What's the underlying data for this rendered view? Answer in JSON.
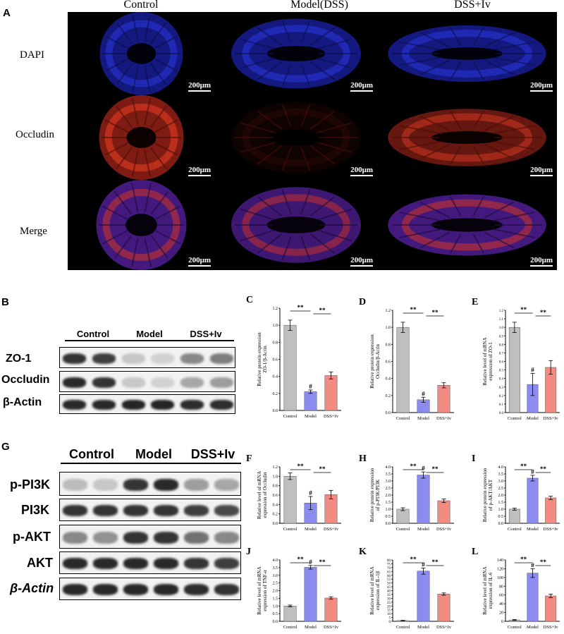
{
  "panelA": {
    "letter": "A",
    "columns": [
      "Control",
      "Model(DSS)",
      "DSS+Iv"
    ],
    "rows": [
      "DAPI",
      "Occludin",
      "Merge"
    ],
    "scale_bar": "200μm"
  },
  "panelB": {
    "letter": "B",
    "groups": [
      "Control",
      "Model",
      "DSS+Iv"
    ],
    "rows": [
      "ZO-1",
      "Occludin",
      "β-Actin"
    ]
  },
  "panelG": {
    "letter": "G",
    "groups": [
      "Control",
      "Model",
      "DSS+Iv"
    ],
    "rows": [
      "p-PI3K",
      "PI3K",
      "p-AKT",
      "AKT",
      "β-Actin"
    ]
  },
  "colors": {
    "control": "#bfbfbf",
    "model": "#8c8cf0",
    "dss": "#f28b82"
  },
  "chart_data": [
    {
      "letter": "C",
      "type": "bar",
      "categories": [
        "Control",
        "Model",
        "DSS+Iv"
      ],
      "values": [
        1.0,
        0.22,
        0.41
      ],
      "errors": [
        0.06,
        0.02,
        0.04
      ],
      "ylabel": [
        "Relative protein expression",
        "ZO-1/β-Actin"
      ],
      "ylim": [
        0,
        1.2
      ],
      "ticks": [
        "0.0",
        "0.2",
        "0.4",
        "0.6",
        "0.8",
        "1.0",
        "1.2"
      ],
      "sig": [
        "**",
        "**"
      ],
      "model_mark": "#"
    },
    {
      "letter": "D",
      "type": "bar",
      "categories": [
        "Control",
        "Model",
        "DSS+Iv"
      ],
      "values": [
        1.0,
        0.15,
        0.32
      ],
      "errors": [
        0.06,
        0.03,
        0.03
      ],
      "ylabel": [
        "Relative protein expression",
        "Occludin/β-Actin"
      ],
      "ylim": [
        0,
        1.2
      ],
      "ticks": [
        "0.0",
        "0.2",
        "0.4",
        "0.6",
        "0.8",
        "1.0",
        "1.2"
      ],
      "sig": [
        "**",
        "**"
      ],
      "model_mark": "#"
    },
    {
      "letter": "E",
      "type": "bar",
      "categories": [
        "Control",
        "Model",
        "DSS+Iv"
      ],
      "values": [
        1.0,
        0.33,
        0.53
      ],
      "errors": [
        0.06,
        0.13,
        0.08
      ],
      "ylabel": [
        "Relative level of mRNA",
        "expression of ZO-1"
      ],
      "ylim": [
        0,
        1.2
      ],
      "ticks": [
        "0.0",
        "0.1",
        "0.2",
        "0.3",
        "0.4",
        "0.5",
        "0.6",
        "0.7",
        "0.8",
        "0.9",
        "1.0",
        "1.1",
        "1.2"
      ],
      "sig": [
        "**",
        "**"
      ],
      "model_mark": "#"
    },
    {
      "letter": "F",
      "type": "bar",
      "categories": [
        "Control",
        "Model",
        "DSS+Iv"
      ],
      "values": [
        1.0,
        0.43,
        0.61
      ],
      "errors": [
        0.07,
        0.14,
        0.09
      ],
      "ylabel": [
        "Relative level of mRNA",
        "expression of Occludin"
      ],
      "ylim": [
        0,
        1.2
      ],
      "ticks": [
        "0.0",
        "0.2",
        "0.4",
        "0.6",
        "0.8",
        "1.0",
        "1.2"
      ],
      "sig": [
        "**",
        "**"
      ],
      "model_mark": "#"
    },
    {
      "letter": "H",
      "type": "bar",
      "categories": [
        "Control",
        "Model",
        "DSS+Iv"
      ],
      "values": [
        1.0,
        3.42,
        1.6
      ],
      "errors": [
        0.1,
        0.22,
        0.12
      ],
      "ylabel": [
        "Relative protein expression",
        "of p-PI3K/PI3K"
      ],
      "ylim": [
        0,
        4.0
      ],
      "ticks": [
        "0.0",
        "0.5",
        "1.0",
        "1.5",
        "2.0",
        "2.5",
        "3.0",
        "3.5",
        "4.0"
      ],
      "sig": [
        "**",
        "**"
      ],
      "model_mark": "#"
    },
    {
      "letter": "I",
      "type": "bar",
      "categories": [
        "Control",
        "Model",
        "DSS+Iv"
      ],
      "values": [
        1.0,
        3.2,
        1.8
      ],
      "errors": [
        0.08,
        0.2,
        0.12
      ],
      "ylabel": [
        "Relative protein expression",
        "of p-AKT/AKT"
      ],
      "ylim": [
        0,
        4.0
      ],
      "ticks": [
        "0.0",
        "0.5",
        "1.0",
        "1.5",
        "2.0",
        "2.5",
        "3.0",
        "3.5",
        "4.0"
      ],
      "sig": [
        "**",
        "**"
      ],
      "model_mark": "#"
    },
    {
      "letter": "J",
      "type": "bar",
      "categories": [
        "Control",
        "Model",
        "DSS+Iv"
      ],
      "values": [
        1.0,
        3.52,
        1.52
      ],
      "errors": [
        0.06,
        0.12,
        0.08
      ],
      "ylabel": [
        "Relative level of mRNA",
        "expression of TNF-α"
      ],
      "ylim": [
        0,
        4.0
      ],
      "ticks": [
        "0.0",
        "0.5",
        "1.0",
        "1.5",
        "2.0",
        "2.5",
        "3.0",
        "3.5",
        "4.0"
      ],
      "sig": [
        "**",
        "**"
      ],
      "model_mark": "#"
    },
    {
      "letter": "K",
      "type": "bar",
      "categories": [
        "Control",
        "Model",
        "DSS+Iv"
      ],
      "values": [
        1.0,
        65.5,
        35.5
      ],
      "errors": [
        0.3,
        4.0,
        1.5
      ],
      "ylabel": [
        "Relative level of mRNA",
        "expression of IL-1β"
      ],
      "ylim": [
        0,
        80
      ],
      "ticks": [
        "0",
        "5",
        "10",
        "15",
        "20",
        "25",
        "30",
        "35",
        "40",
        "45",
        "50",
        "55",
        "60",
        "65",
        "70",
        "75",
        "80"
      ],
      "sig": [
        "**",
        "**"
      ],
      "model_mark": "#"
    },
    {
      "letter": "L",
      "type": "bar",
      "categories": [
        "Control",
        "Model",
        "DSS+Iv"
      ],
      "values": [
        3.0,
        110.0,
        58.0
      ],
      "errors": [
        1.0,
        10.0,
        4.0
      ],
      "ylabel": [
        "Relative level of mRNA",
        "expression of IL-6"
      ],
      "ylim": [
        0,
        140
      ],
      "ticks": [
        "0",
        "20",
        "40",
        "60",
        "80",
        "100",
        "120",
        "140"
      ],
      "sig": [
        "**",
        "**"
      ],
      "model_mark": "#"
    }
  ]
}
